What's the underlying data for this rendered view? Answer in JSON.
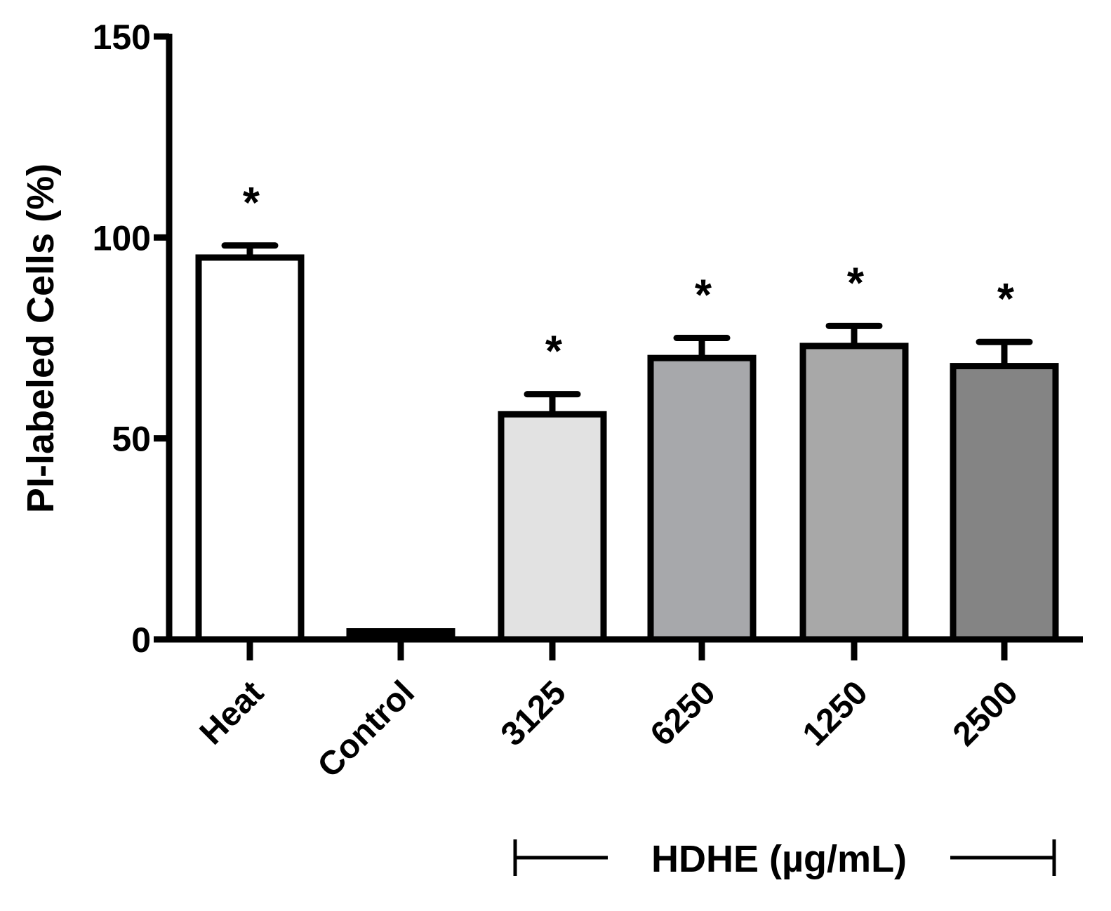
{
  "chart_data": {
    "type": "bar",
    "title": "",
    "xlabel": "",
    "ylabel": "PI-labeled Cells (%)",
    "ylim": [
      0,
      150
    ],
    "yticks": [
      "0",
      "50",
      "100",
      "150"
    ],
    "categories": [
      "Heat",
      "Control",
      "3125",
      "6250",
      "1250",
      "2500"
    ],
    "values": [
      95,
      2,
      56,
      70,
      73,
      68
    ],
    "errors": [
      3,
      0.5,
      5,
      5,
      5,
      6
    ],
    "significance": [
      "*",
      "",
      "*",
      "*",
      "*",
      "*"
    ],
    "bar_colors": [
      "#ffffff",
      "#000000",
      "#e2e2e2",
      "#a7a8ab",
      "#a8a8a8",
      "#848484"
    ],
    "group_label": "HDHE (µg/mL)",
    "grid": false,
    "legend": "none"
  }
}
